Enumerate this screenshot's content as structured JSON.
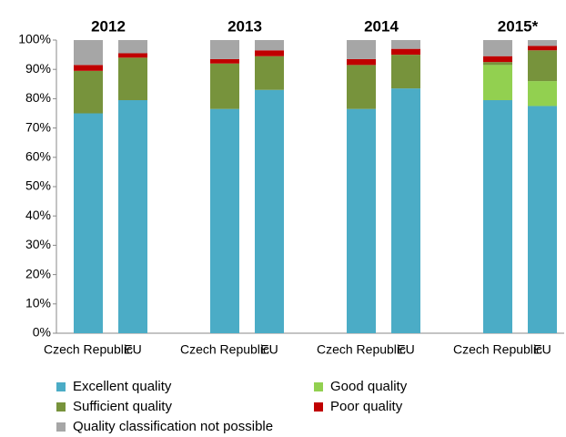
{
  "chart_data": {
    "type": "stacked_bar",
    "group_labels": [
      "2012",
      "2013",
      "2014",
      "2015*"
    ],
    "categories": [
      "Czech Republic",
      "EU",
      "Czech Republic",
      "EU",
      "Czech Republic",
      "EU",
      "Czech Republic",
      "EU"
    ],
    "series": [
      {
        "name": "Excellent quality",
        "color": "#4bacc6",
        "values": [
          75,
          79.5,
          76.5,
          83,
          76.5,
          83.5,
          79.5,
          77.5
        ]
      },
      {
        "name": "Good quality",
        "color": "#92d050",
        "values": [
          0,
          0,
          0,
          0,
          0,
          0,
          12,
          8.5
        ]
      },
      {
        "name": "Sufficient quality",
        "color": "#77933c",
        "values": [
          14.5,
          14.5,
          15.5,
          11.5,
          15,
          11.5,
          1,
          10.5
        ]
      },
      {
        "name": "Poor quality",
        "color": "#c00000",
        "values": [
          2,
          1.5,
          1.5,
          2,
          2,
          2,
          2,
          1.5
        ]
      },
      {
        "name": "Quality classification not possible",
        "color": "#a6a6a6",
        "values": [
          8.5,
          4.5,
          6.5,
          3.5,
          6.5,
          3,
          5.5,
          2
        ]
      }
    ],
    "ylim": [
      0,
      100
    ],
    "yticks": [
      {
        "value": 0,
        "label": "0%"
      },
      {
        "value": 10,
        "label": "10%"
      },
      {
        "value": 20,
        "label": "20%"
      },
      {
        "value": 30,
        "label": "30%"
      },
      {
        "value": 40,
        "label": "40%"
      },
      {
        "value": 50,
        "label": "50%"
      },
      {
        "value": 60,
        "label": "60%"
      },
      {
        "value": 70,
        "label": "70%"
      },
      {
        "value": 80,
        "label": "80%"
      },
      {
        "value": 90,
        "label": "90%"
      },
      {
        "value": 100,
        "label": "100%"
      }
    ],
    "grid": false
  }
}
